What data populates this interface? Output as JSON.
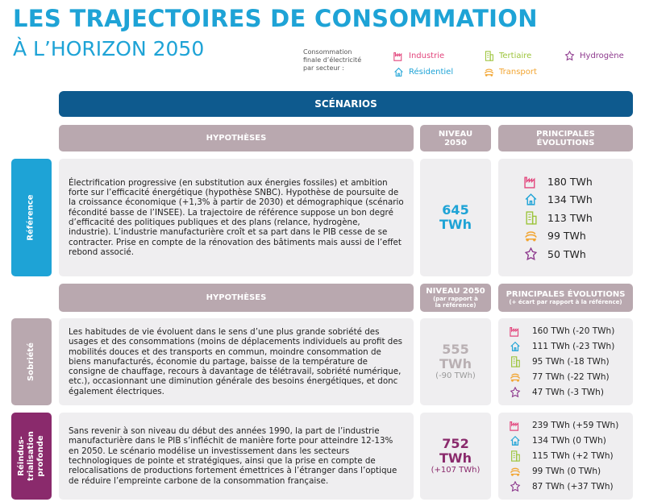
{
  "header": {
    "title": "LES TRAJECTOIRES DE CONSOMMATION",
    "subtitle": "À L’HORIZON 2050"
  },
  "legend": {
    "caption": [
      "Consommation",
      "finale d’électricité",
      "par secteur :"
    ],
    "items": [
      "Industrie",
      "Résidentiel",
      "Tertiaire",
      "Transport",
      "Hydrogène"
    ]
  },
  "banner": "SCÉNARIOS",
  "columns_main": {
    "hypotheses": "HYPOTHÈSES",
    "level": [
      "NIVEAU",
      "2050"
    ],
    "evolutions": [
      "PRINCIPALES",
      "ÉVOLUTIONS"
    ]
  },
  "columns_variants": {
    "hypotheses": "HYPOTHÈSES",
    "level": "NIVEAU 2050",
    "level_note": [
      "(par rapport à",
      "la référence)"
    ],
    "evolutions": "PRINCIPALES ÉVOLUTIONS",
    "evolutions_note": "(+ écart par rapport à la référence)"
  },
  "scenarios": [
    {
      "name": [
        "Référence"
      ],
      "text": "Électrification progressive (en substitution aux énergies fossiles) et ambition forte sur l’efficacité énergétique (hypothèse SNBC). Hypothèse de poursuite de la croissance économique (+1,3% à partir de 2030) et démographique (scénario fécondité basse de l’INSEE). La trajectoire de référence suppose un bon degré d’efficacité des politiques publiques et des plans (relance, hydrogène, industrie). L’industrie manufacturière croît et sa part dans le PIB cesse de se contracter. Prise en compte de la rénovation des bâtiments mais aussi de l’effet rebond associé.",
      "level": [
        "645",
        "TWh"
      ],
      "evolutions": [
        "180 TWh",
        "134 TWh",
        "113 TWh",
        "99 TWh",
        "50 TWh"
      ]
    },
    {
      "name": [
        "Sobriété"
      ],
      "text": "Les habitudes de vie évoluent dans le sens d’une plus grande sobriété des usages et des consommations (moins de déplacements individuels au profit des mobilités douces et des transports en commun, moindre consommation de biens manufacturés, économie du partage, baisse de la température de consigne de chauffage, recours à davantage de télétravail, sobriété numérique, etc.), occasionnant une diminution générale des besoins énergétiques, et donc également électriques.",
      "level": [
        "555",
        "TWh"
      ],
      "delta": "(-90 TWh)",
      "evolutions": [
        "160 TWh (-20 TWh)",
        "111 TWh (-23 TWh)",
        "95 TWh (-18 TWh)",
        "77 TWh (-22 TWh)",
        "47 TWh (-3 TWh)"
      ]
    },
    {
      "name": [
        "Réindus-",
        "trialisation",
        "profonde"
      ],
      "text": "Sans revenir à son niveau du début des années 1990, la part de l’industrie manufacturière dans le PIB s’infléchit de manière forte pour atteindre 12-13% en 2050. Le scénario modélise un investissement dans les secteurs technologiques de pointe et stratégiques, ainsi que la prise en compte de relocalisations de productions fortement émettrices à l’étranger dans l’optique de réduire l’empreinte carbone de la consommation française.",
      "level": [
        "752",
        "TWh"
      ],
      "delta": "(+107 TWh)",
      "evolutions": [
        "239 TWh (+59 TWh)",
        "134 TWh (0 TWh)",
        "115 TWh (+2 TWh)",
        "99 TWh (0 TWh)",
        "87 TWh (+37 TWh)"
      ]
    }
  ]
}
